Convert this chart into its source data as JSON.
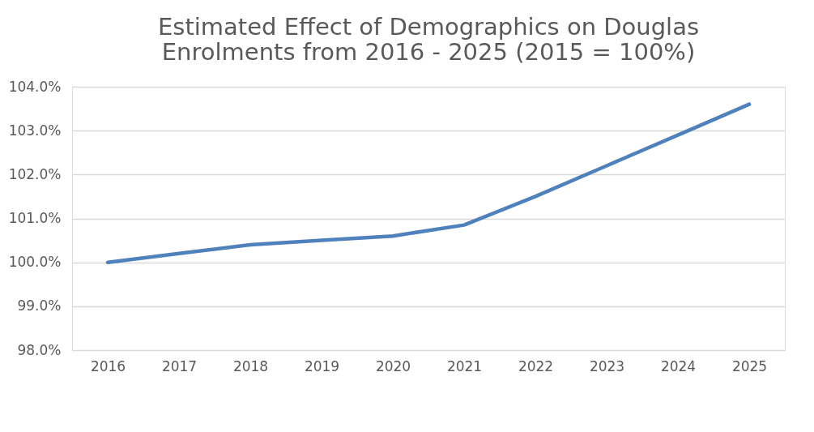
{
  "chart_data": {
    "type": "line",
    "title": [
      "Estimated Effect of Demographics on Douglas",
      "Enrolments from 2016 - 2025 (2015 = 100%)"
    ],
    "categories": [
      "2016",
      "2017",
      "2018",
      "2019",
      "2020",
      "2021",
      "2022",
      "2023",
      "2024",
      "2025"
    ],
    "series": [
      {
        "color": "#4f81bd",
        "values": [
          100.0,
          100.2,
          100.4,
          100.5,
          100.6,
          100.85,
          101.5,
          102.2,
          102.9,
          103.6
        ]
      }
    ],
    "ylim": [
      98,
      104
    ],
    "yticks": [
      {
        "value": 98,
        "label": "98.0%"
      },
      {
        "value": 99,
        "label": "99.0%"
      },
      {
        "value": 100,
        "label": "100.0%"
      },
      {
        "value": 101,
        "label": "101.0%"
      },
      {
        "value": 102,
        "label": "102.0%"
      },
      {
        "value": 103,
        "label": "103.0%"
      },
      {
        "value": 104,
        "label": "104.0%"
      }
    ],
    "grid": "y",
    "marker": "none",
    "line_style": "solid"
  }
}
